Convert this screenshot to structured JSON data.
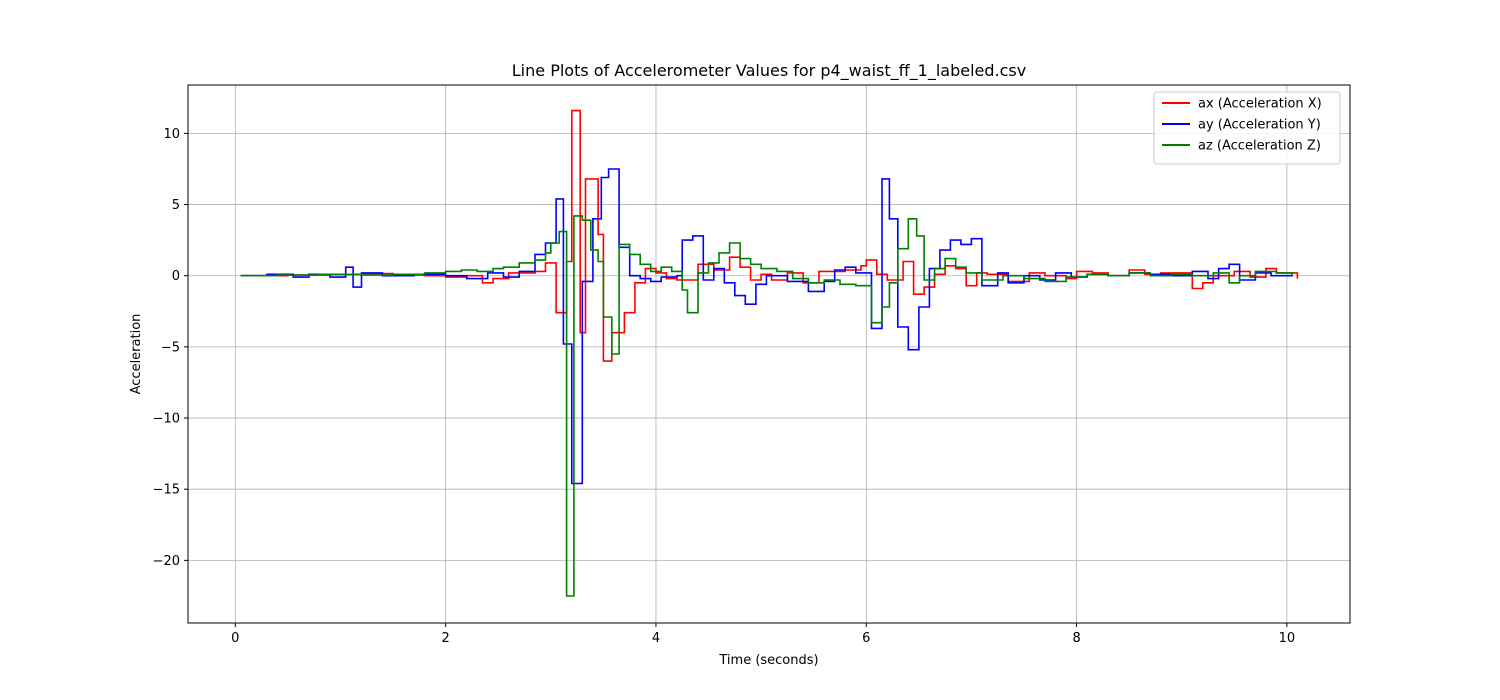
{
  "chart_data": {
    "type": "line",
    "step": true,
    "title": "Line Plots of Accelerometer Values for p4_waist_ff_1_labeled.csv",
    "xlabel": "Time (seconds)",
    "ylabel": "Acceleration",
    "xlim": [
      -0.45,
      10.6
    ],
    "ylim": [
      -24.4,
      13.4
    ],
    "xticks": [
      0,
      2,
      4,
      6,
      8,
      10
    ],
    "xtick_labels": [
      "0",
      "2",
      "4",
      "6",
      "8",
      "10"
    ],
    "yticks": [
      10,
      5,
      0,
      -5,
      -10,
      -15,
      -20
    ],
    "ytick_labels": [
      "10",
      "5",
      "0",
      "−5",
      "−10",
      "−15",
      "−20"
    ],
    "grid": true,
    "legend_position": "top-right",
    "series": [
      {
        "name": "ax (Acceleration X)",
        "color": "#ff0000",
        "points": [
          [
            0.05,
            0
          ],
          [
            0.5,
            0.05
          ],
          [
            0.9,
            0.1
          ],
          [
            1.2,
            0.15
          ],
          [
            1.5,
            0.05
          ],
          [
            1.8,
            0.0
          ],
          [
            2.0,
            -0.1
          ],
          [
            2.2,
            0.0
          ],
          [
            2.35,
            -0.5
          ],
          [
            2.45,
            -0.2
          ],
          [
            2.6,
            0.2
          ],
          [
            2.85,
            0.3
          ],
          [
            2.95,
            0.9
          ],
          [
            3.05,
            -2.6
          ],
          [
            3.15,
            1.0
          ],
          [
            3.2,
            11.6
          ],
          [
            3.28,
            -4.0
          ],
          [
            3.33,
            6.8
          ],
          [
            3.45,
            2.9
          ],
          [
            3.5,
            -6.0
          ],
          [
            3.58,
            -4.0
          ],
          [
            3.7,
            -2.6
          ],
          [
            3.8,
            -0.5
          ],
          [
            3.9,
            0.5
          ],
          [
            4.0,
            0.2
          ],
          [
            4.1,
            -0.2
          ],
          [
            4.2,
            -0.3
          ],
          [
            4.4,
            0.8
          ],
          [
            4.55,
            0.4
          ],
          [
            4.7,
            1.3
          ],
          [
            4.8,
            0.6
          ],
          [
            4.9,
            -0.3
          ],
          [
            5.0,
            0.1
          ],
          [
            5.1,
            -0.3
          ],
          [
            5.25,
            0.2
          ],
          [
            5.4,
            -0.5
          ],
          [
            5.55,
            0.3
          ],
          [
            5.65,
            0.3
          ],
          [
            5.8,
            0.4
          ],
          [
            5.95,
            0.7
          ],
          [
            6.0,
            1.1
          ],
          [
            6.1,
            0.1
          ],
          [
            6.2,
            -0.3
          ],
          [
            6.35,
            1.0
          ],
          [
            6.45,
            -1.3
          ],
          [
            6.55,
            -0.8
          ],
          [
            6.65,
            0.1
          ],
          [
            6.75,
            0.7
          ],
          [
            6.85,
            0.5
          ],
          [
            6.95,
            -0.7
          ],
          [
            7.05,
            0.2
          ],
          [
            7.15,
            0.1
          ],
          [
            7.35,
            -0.4
          ],
          [
            7.55,
            0.2
          ],
          [
            7.7,
            0.0
          ],
          [
            7.9,
            -0.2
          ],
          [
            8.0,
            0.3
          ],
          [
            8.15,
            0.2
          ],
          [
            8.3,
            0.0
          ],
          [
            8.5,
            0.4
          ],
          [
            8.65,
            0.1
          ],
          [
            8.8,
            0.2
          ],
          [
            9.0,
            0.2
          ],
          [
            9.1,
            -0.9
          ],
          [
            9.2,
            -0.5
          ],
          [
            9.3,
            0.0
          ],
          [
            9.5,
            0.3
          ],
          [
            9.65,
            -0.1
          ],
          [
            9.8,
            0.5
          ],
          [
            9.9,
            0.2
          ],
          [
            10.1,
            -0.2
          ]
        ]
      },
      {
        "name": "ay (Acceleration Y)",
        "color": "#0000ff",
        "points": [
          [
            0.05,
            0
          ],
          [
            0.3,
            0.1
          ],
          [
            0.55,
            -0.1
          ],
          [
            0.7,
            0.1
          ],
          [
            0.9,
            -0.1
          ],
          [
            1.05,
            0.6
          ],
          [
            1.12,
            -0.8
          ],
          [
            1.2,
            0.2
          ],
          [
            1.4,
            0.0
          ],
          [
            1.7,
            0.1
          ],
          [
            2.0,
            0.0
          ],
          [
            2.2,
            -0.2
          ],
          [
            2.4,
            0.2
          ],
          [
            2.55,
            -0.1
          ],
          [
            2.7,
            0.3
          ],
          [
            2.85,
            1.5
          ],
          [
            2.95,
            2.3
          ],
          [
            3.05,
            5.4
          ],
          [
            3.12,
            -4.8
          ],
          [
            3.2,
            -14.6
          ],
          [
            3.3,
            -0.4
          ],
          [
            3.4,
            4.0
          ],
          [
            3.48,
            6.9
          ],
          [
            3.55,
            7.5
          ],
          [
            3.65,
            2.0
          ],
          [
            3.75,
            0.0
          ],
          [
            3.85,
            -0.2
          ],
          [
            3.95,
            -0.4
          ],
          [
            4.05,
            -0.1
          ],
          [
            4.2,
            0.0
          ],
          [
            4.25,
            2.5
          ],
          [
            4.35,
            2.8
          ],
          [
            4.45,
            -0.3
          ],
          [
            4.55,
            0.5
          ],
          [
            4.65,
            -0.5
          ],
          [
            4.75,
            -1.4
          ],
          [
            4.85,
            -2.0
          ],
          [
            4.95,
            -0.6
          ],
          [
            5.05,
            0.0
          ],
          [
            5.25,
            -0.4
          ],
          [
            5.45,
            -1.1
          ],
          [
            5.6,
            -0.4
          ],
          [
            5.7,
            0.4
          ],
          [
            5.8,
            0.6
          ],
          [
            5.9,
            0.2
          ],
          [
            6.05,
            -3.7
          ],
          [
            6.15,
            6.8
          ],
          [
            6.22,
            4.0
          ],
          [
            6.3,
            -3.6
          ],
          [
            6.4,
            -5.2
          ],
          [
            6.5,
            -2.2
          ],
          [
            6.6,
            0.5
          ],
          [
            6.7,
            1.8
          ],
          [
            6.8,
            2.5
          ],
          [
            6.9,
            2.2
          ],
          [
            7.0,
            2.6
          ],
          [
            7.1,
            -0.7
          ],
          [
            7.25,
            0.2
          ],
          [
            7.35,
            -0.5
          ],
          [
            7.5,
            0.0
          ],
          [
            7.65,
            -0.3
          ],
          [
            7.8,
            0.2
          ],
          [
            7.95,
            -0.1
          ],
          [
            8.1,
            0.1
          ],
          [
            8.3,
            0.0
          ],
          [
            8.5,
            0.2
          ],
          [
            8.7,
            0.1
          ],
          [
            8.9,
            0.0
          ],
          [
            9.1,
            0.3
          ],
          [
            9.25,
            -0.2
          ],
          [
            9.35,
            0.5
          ],
          [
            9.45,
            0.8
          ],
          [
            9.55,
            -0.3
          ],
          [
            9.7,
            0.2
          ],
          [
            9.85,
            0.0
          ],
          [
            10.05,
            0.2
          ]
        ]
      },
      {
        "name": "az (Acceleration Z)",
        "color": "#008000",
        "points": [
          [
            0.05,
            0
          ],
          [
            0.4,
            0.05
          ],
          [
            0.8,
            0.1
          ],
          [
            1.2,
            0.05
          ],
          [
            1.5,
            0.1
          ],
          [
            1.8,
            0.2
          ],
          [
            2.0,
            0.3
          ],
          [
            2.15,
            0.4
          ],
          [
            2.3,
            0.3
          ],
          [
            2.45,
            0.5
          ],
          [
            2.55,
            0.6
          ],
          [
            2.7,
            0.9
          ],
          [
            2.85,
            1.1
          ],
          [
            2.95,
            1.6
          ],
          [
            3.0,
            2.3
          ],
          [
            3.08,
            3.1
          ],
          [
            3.15,
            -22.5
          ],
          [
            3.22,
            4.2
          ],
          [
            3.3,
            3.9
          ],
          [
            3.38,
            1.8
          ],
          [
            3.45,
            1.0
          ],
          [
            3.5,
            -2.9
          ],
          [
            3.58,
            -5.5
          ],
          [
            3.65,
            2.2
          ],
          [
            3.75,
            1.5
          ],
          [
            3.85,
            0.8
          ],
          [
            3.95,
            0.3
          ],
          [
            4.05,
            0.6
          ],
          [
            4.15,
            0.3
          ],
          [
            4.25,
            -1.0
          ],
          [
            4.3,
            -2.6
          ],
          [
            4.4,
            0.2
          ],
          [
            4.5,
            0.9
          ],
          [
            4.6,
            1.6
          ],
          [
            4.7,
            2.3
          ],
          [
            4.8,
            1.2
          ],
          [
            4.9,
            0.8
          ],
          [
            5.0,
            0.5
          ],
          [
            5.15,
            0.3
          ],
          [
            5.3,
            -0.2
          ],
          [
            5.45,
            -0.5
          ],
          [
            5.6,
            -0.3
          ],
          [
            5.75,
            -0.6
          ],
          [
            5.9,
            -0.7
          ],
          [
            6.05,
            -3.3
          ],
          [
            6.15,
            -2.2
          ],
          [
            6.22,
            -0.5
          ],
          [
            6.3,
            1.9
          ],
          [
            6.4,
            4.0
          ],
          [
            6.48,
            2.8
          ],
          [
            6.55,
            -0.3
          ],
          [
            6.65,
            0.5
          ],
          [
            6.75,
            1.2
          ],
          [
            6.85,
            0.6
          ],
          [
            6.95,
            0.2
          ],
          [
            7.1,
            -0.3
          ],
          [
            7.3,
            0.0
          ],
          [
            7.5,
            -0.2
          ],
          [
            7.7,
            -0.4
          ],
          [
            7.9,
            -0.1
          ],
          [
            8.1,
            0.1
          ],
          [
            8.3,
            0.0
          ],
          [
            8.5,
            0.2
          ],
          [
            8.7,
            0.0
          ],
          [
            8.9,
            0.1
          ],
          [
            9.1,
            0.0
          ],
          [
            9.3,
            0.2
          ],
          [
            9.45,
            -0.5
          ],
          [
            9.55,
            0.0
          ],
          [
            9.7,
            0.3
          ],
          [
            9.9,
            0.2
          ],
          [
            10.05,
            0.0
          ]
        ]
      }
    ]
  }
}
